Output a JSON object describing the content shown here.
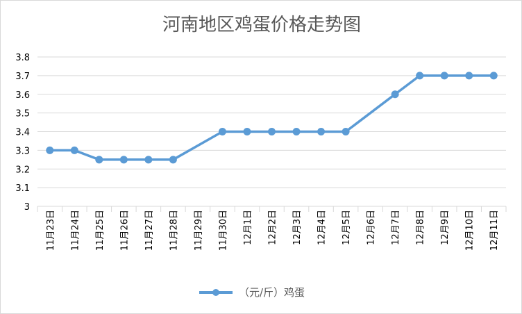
{
  "chart_data": {
    "type": "line",
    "title": "河南地区鸡蛋价格走势图",
    "xlabel": "",
    "ylabel": "",
    "categories": [
      "11月23日",
      "11月24日",
      "11月25日",
      "11月26日",
      "11月27日",
      "11月28日",
      "11月29日",
      "11月30日",
      "12月1日",
      "12月2日",
      "12月3日",
      "12月4日",
      "12月5日",
      "12月6日",
      "12月7日",
      "12月8日",
      "12月9日",
      "12月10日",
      "12月11日"
    ],
    "series": [
      {
        "name": "（元/斤）鸡蛋",
        "values": [
          3.3,
          3.3,
          3.25,
          3.25,
          3.25,
          3.25,
          null,
          3.4,
          3.4,
          3.4,
          3.4,
          3.4,
          3.4,
          null,
          3.6,
          3.7,
          3.7,
          3.7,
          3.7
        ]
      }
    ],
    "y_ticks": [
      "3",
      "3.1",
      "3.2",
      "3.3",
      "3.4",
      "3.5",
      "3.6",
      "3.7",
      "3.8"
    ],
    "ylim": [
      3.0,
      3.8
    ],
    "grid": true,
    "legend_position": "bottom",
    "series_color": "#5b9bd5",
    "grid_color": "#d9d9d9"
  }
}
